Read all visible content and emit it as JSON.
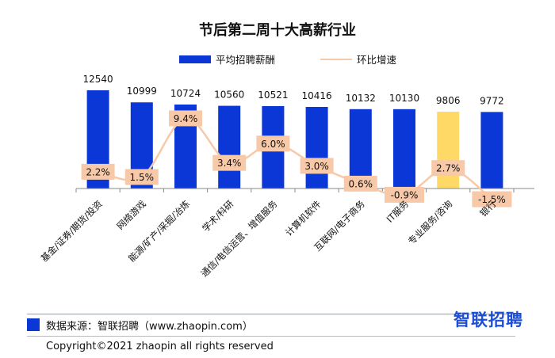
{
  "chart_data": {
    "type": "bar",
    "title": "节后第二周十大高薪行业",
    "categories": [
      "基金/证券/期货/投资",
      "网络游戏",
      "能源/矿产/采掘/冶炼",
      "学术/科研",
      "通信/电信运营、增值服务",
      "计算机软件",
      "互联网/电子商务",
      "IT服务",
      "专业服务/咨询",
      "银行"
    ],
    "series": [
      {
        "name": "平均招聘薪酬",
        "type": "bar",
        "values": [
          12540,
          10999,
          10724,
          10560,
          10521,
          10416,
          10132,
          10130,
          9806,
          9772
        ],
        "labels": [
          "12540",
          "10999",
          "10724",
          "10560",
          "10521",
          "10416",
          "10132",
          "10130",
          "9806",
          "9772"
        ],
        "color": "#0a37d6",
        "highlight_index": 8,
        "highlight_color": "#ffd966"
      },
      {
        "name": "环比增速",
        "type": "line",
        "values": [
          2.2,
          1.5,
          9.4,
          3.4,
          6.0,
          3.0,
          0.6,
          -0.9,
          2.7,
          -1.5
        ],
        "labels": [
          "2.2%",
          "1.5%",
          "9.4%",
          "3.4%",
          "6.0%",
          "3.0%",
          "0.6%",
          "-0.9%",
          "2.7%",
          "-1.5%"
        ],
        "color": "#f7c9a8"
      }
    ],
    "legend_position": "top-center",
    "grid": false
  },
  "footer": {
    "source": "数据来源：智联招聘（www.zhaopin.com）",
    "brand": "智联招聘",
    "copyright": "Copyright©2021 zhaopin all rights reserved"
  },
  "colors": {
    "bar": "#0a37d6",
    "highlight": "#ffd966",
    "line": "#f7c9a8",
    "label_box": "#f7c9a8"
  }
}
